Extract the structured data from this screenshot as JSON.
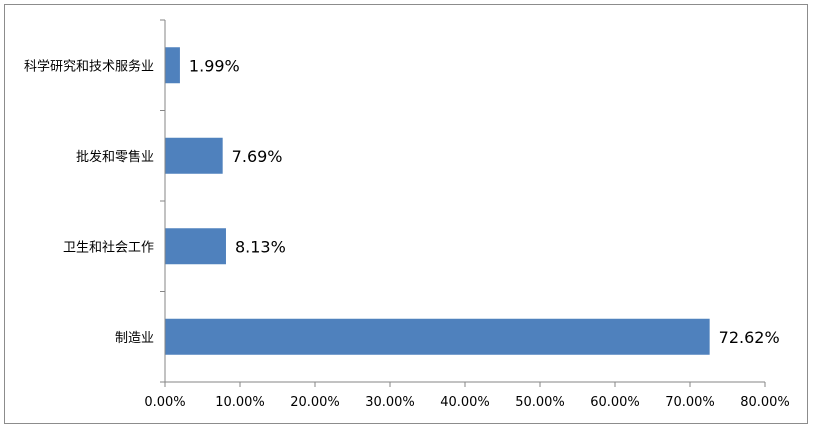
{
  "chart_data": {
    "type": "bar",
    "orientation": "horizontal",
    "categories": [
      "科学研究和技术服务业",
      "批发和零售业",
      "卫生和社会工作",
      "制造业"
    ],
    "values": [
      1.99,
      7.69,
      8.13,
      72.62
    ],
    "value_labels": [
      "1.99%",
      "7.69%",
      "8.13%",
      "72.62%"
    ],
    "xlim": [
      0,
      80
    ],
    "xticks": [
      0,
      10,
      20,
      30,
      40,
      50,
      60,
      70,
      80
    ],
    "xtick_labels": [
      "0.00%",
      "10.00%",
      "20.00%",
      "30.00%",
      "40.00%",
      "50.00%",
      "60.00%",
      "70.00%",
      "80.00%"
    ],
    "grid": false,
    "legend": "none",
    "bar_color": "#4f81bd"
  }
}
